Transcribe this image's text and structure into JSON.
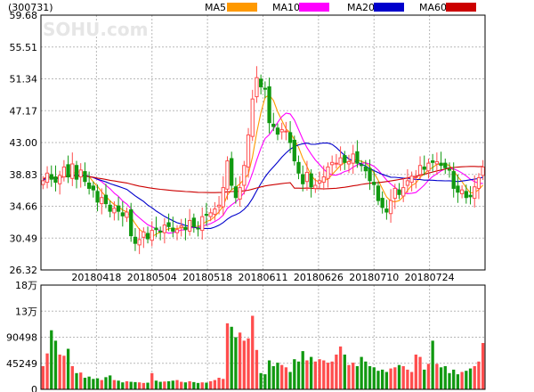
{
  "stock_code": "(300731)",
  "watermark": "SOHU.com",
  "colors": {
    "up": "#ff4d4d",
    "down": "#119911",
    "ma5": "#ff9900",
    "ma10": "#ff00ff",
    "ma20": "#0000cc",
    "ma60": "#cc0000",
    "grid": "#b8b8b8",
    "axis": "#000000"
  },
  "chart_data": [
    {
      "type": "candlestick",
      "ylim": [
        26.32,
        59.68
      ],
      "y_ticks": [
        "59.68",
        "55.51",
        "51.34",
        "47.17",
        "43.00",
        "38.83",
        "34.66",
        "30.49",
        "26.32"
      ],
      "x_ticks": [
        "20180418",
        "20180504",
        "20180518",
        "20180611",
        "20180626",
        "20180710",
        "20180724"
      ],
      "legend": [
        {
          "label": "MA5",
          "color": "#ff9900"
        },
        {
          "label": "MA10",
          "color": "#ff00ff"
        },
        {
          "label": "MA20",
          "color": "#0000cc"
        },
        {
          "label": "MA60",
          "color": "#cc0000"
        }
      ],
      "close": [
        38.0,
        39.0,
        38.2,
        37.8,
        38.7,
        39.8,
        38.5,
        40.2,
        38.2,
        39.4,
        37.9,
        37.0,
        36.8,
        35.2,
        35.8,
        35.0,
        34.0,
        34.4,
        34.0,
        33.4,
        33.9,
        30.8,
        29.8,
        30.3,
        31.3,
        30.4,
        31.5,
        31.6,
        31.4,
        32.2,
        32.0,
        31.4,
        31.6,
        32.1,
        31.6,
        32.8,
        32.0,
        31.7,
        33.3,
        33.5,
        33.8,
        34.3,
        34.8,
        37.1,
        40.6,
        37.4,
        35.8,
        37.1,
        40.0,
        44.0,
        48.7,
        51.5,
        50.3,
        50.0,
        45.6,
        45.1,
        44.1,
        44.7,
        44.5,
        43.0,
        40.6,
        39.0,
        37.6,
        39.1,
        37.2,
        37.4,
        38.0,
        38.5,
        39.8,
        40.4,
        40.3,
        41.0,
        40.4,
        40.5,
        41.5,
        40.3,
        40.0,
        39.3,
        38.0,
        37.5,
        35.4,
        34.5,
        33.9,
        35.4,
        37.0,
        36.2,
        37.1,
        38.0,
        38.6,
        38.5,
        40.0,
        39.5,
        40.3,
        40.4,
        40.5,
        40.0,
        39.7,
        39.4,
        37.0,
        36.5,
        36.8,
        35.8,
        35.9,
        37.2,
        38.4,
        39.8
      ],
      "volume": [
        40000,
        62000,
        102000,
        84000,
        60000,
        58000,
        70000,
        40000,
        28000,
        29000,
        20000,
        22000,
        18000,
        19000,
        16000,
        21000,
        24000,
        16000,
        15000,
        12000,
        14000,
        13000,
        12500,
        12000,
        11000,
        11500,
        28000,
        15000,
        13000,
        13500,
        14000,
        15000,
        16000,
        13000,
        12000,
        14000,
        12500,
        11000,
        12000,
        11500,
        14000,
        16000,
        20000,
        18000,
        114000,
        108000,
        90000,
        98000,
        84000,
        88000,
        127000,
        68000,
        28000,
        26000,
        50000,
        40000,
        46000,
        42000,
        38000,
        30000,
        52000,
        48000,
        66000,
        50000,
        56000,
        48000,
        52000,
        50000,
        46000,
        48000,
        60000,
        74000,
        60000,
        42000,
        46000,
        40000,
        56000,
        48000,
        40000,
        38000,
        32000,
        34000,
        30000,
        36000,
        38000,
        42000,
        40000,
        34000,
        30000,
        60000,
        56000,
        34000,
        44000,
        84000,
        44000,
        38000,
        40000,
        28000,
        34000,
        26000,
        30000,
        32000,
        36000,
        40000,
        48000,
        80000
      ],
      "vol_ticks": [
        "18万",
        "13万",
        "90498",
        "45249",
        "0"
      ],
      "vol_ylim": [
        0,
        180000
      ]
    }
  ]
}
